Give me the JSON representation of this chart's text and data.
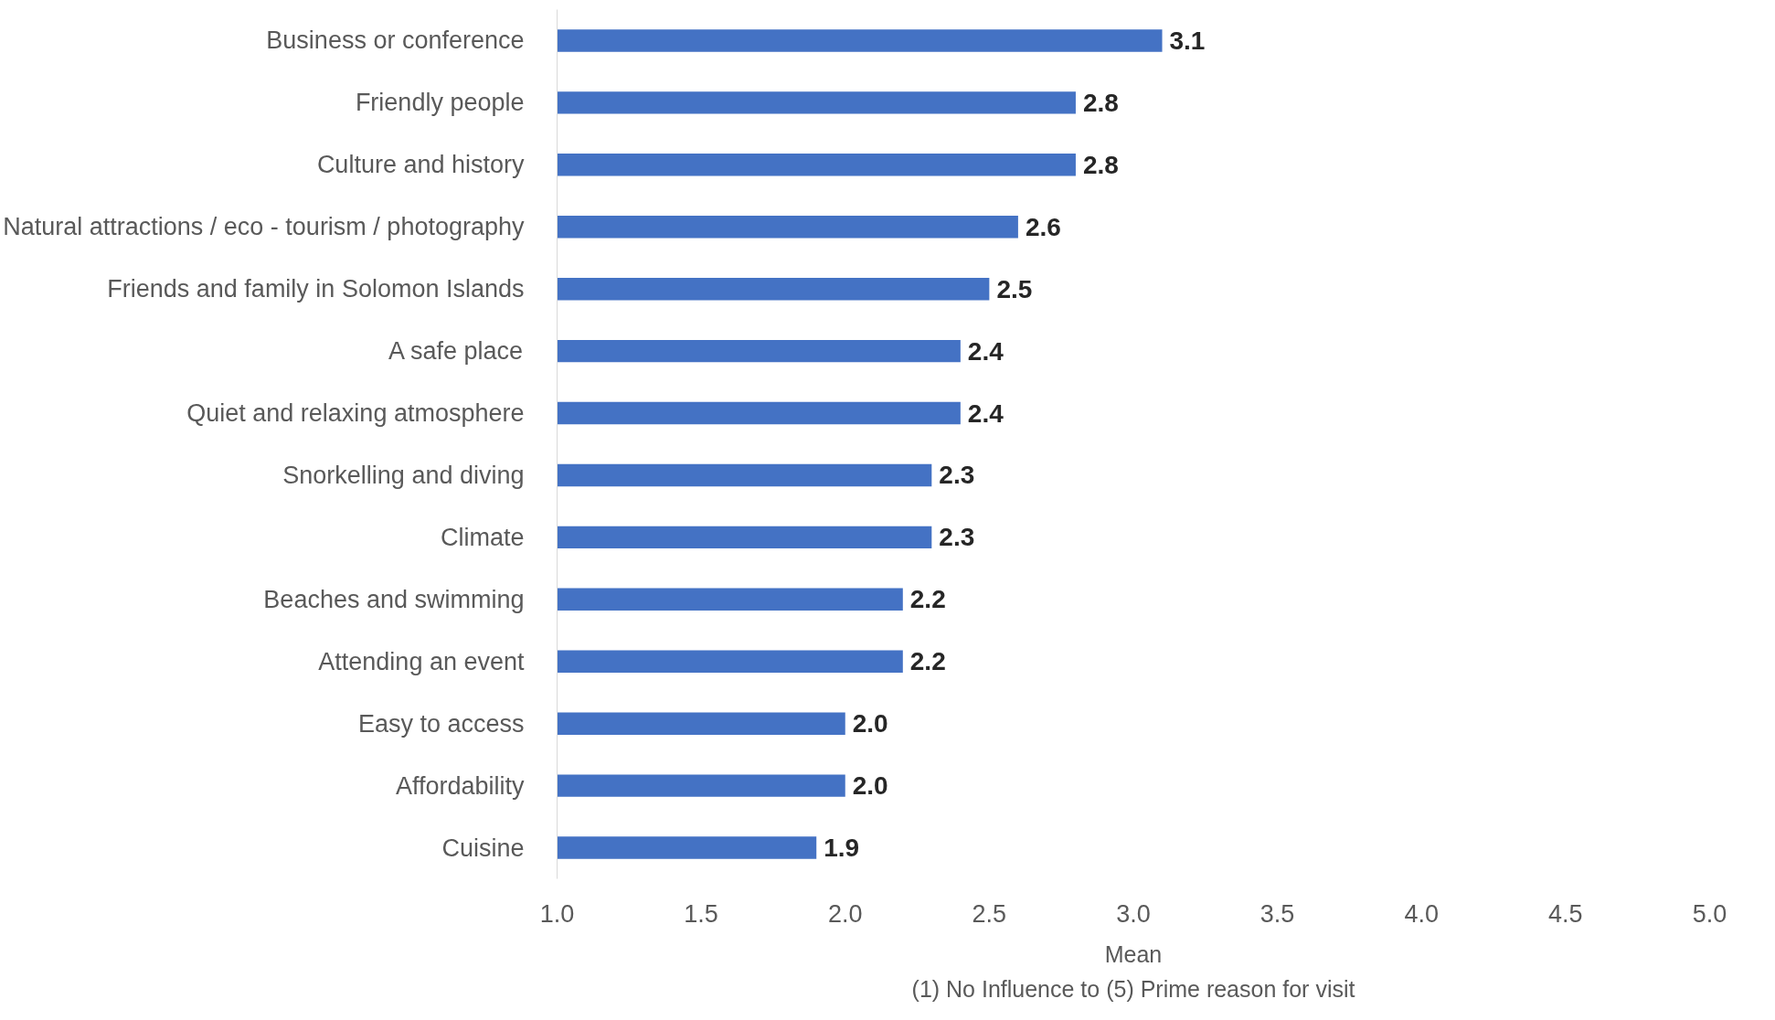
{
  "chart_data": {
    "type": "bar",
    "orientation": "horizontal",
    "categories": [
      "Business or conference",
      "Friendly people",
      "Culture and history",
      "Natural attractions / eco - tourism / photography",
      "Friends and family in Solomon Islands",
      "A safe place",
      "Quiet and relaxing atmosphere",
      "Snorkelling and diving",
      "Climate",
      "Beaches and swimming",
      "Attending an event",
      "Easy to access",
      "Affordability",
      "Cuisine"
    ],
    "values": [
      3.1,
      2.8,
      2.8,
      2.6,
      2.5,
      2.4,
      2.4,
      2.3,
      2.3,
      2.2,
      2.2,
      2.0,
      2.0,
      1.9
    ],
    "value_labels": [
      "3.1",
      "2.8",
      "2.8",
      "2.6",
      "2.5",
      "2.4",
      "2.4",
      "2.3",
      "2.3",
      "2.2",
      "2.2",
      "2.0",
      "2.0",
      "1.9"
    ],
    "color": "#4472c4",
    "xlim": [
      1,
      5
    ],
    "xticks": [
      {
        "value": 1,
        "label": "1.0"
      },
      {
        "value": 1.5,
        "label": "1.5"
      },
      {
        "value": 2,
        "label": "2.0"
      },
      {
        "value": 2.5,
        "label": "2.5"
      },
      {
        "value": 3,
        "label": "3.0"
      },
      {
        "value": 3.5,
        "label": "3.5"
      },
      {
        "value": 4,
        "label": "4.0"
      },
      {
        "value": 4.5,
        "label": "4.5"
      },
      {
        "value": 5,
        "label": "5.0"
      }
    ],
    "xlabel": "Mean",
    "annotations": [
      "(1) No Influence to (5) Prime reason for visit"
    ],
    "grid": false
  }
}
